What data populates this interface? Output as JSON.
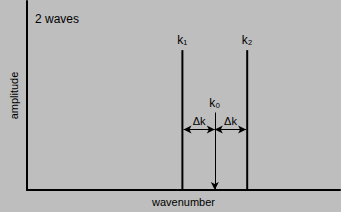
{
  "chart_data": {
    "type": "stem",
    "title": "2 waves",
    "xlabel": "wavenumber",
    "ylabel": "amplitude",
    "xlim": [
      0,
      100
    ],
    "ylim": [
      0,
      100
    ],
    "xticks": [],
    "yticks": [],
    "tick_labels": false,
    "grid": false,
    "color": "#000000",
    "lines": [
      {
        "label": "k₁",
        "x": 50,
        "y": 74
      },
      {
        "label": "k₂",
        "x": 70,
        "y": 74
      }
    ],
    "center": {
      "label": "k₀",
      "x": 60,
      "y": 41,
      "marker": "arrow"
    },
    "spacing": [
      {
        "label": "Δk",
        "from": 50,
        "to": 60,
        "y": 32
      },
      {
        "label": "Δk",
        "from": 60,
        "to": 70,
        "y": 32
      }
    ]
  }
}
